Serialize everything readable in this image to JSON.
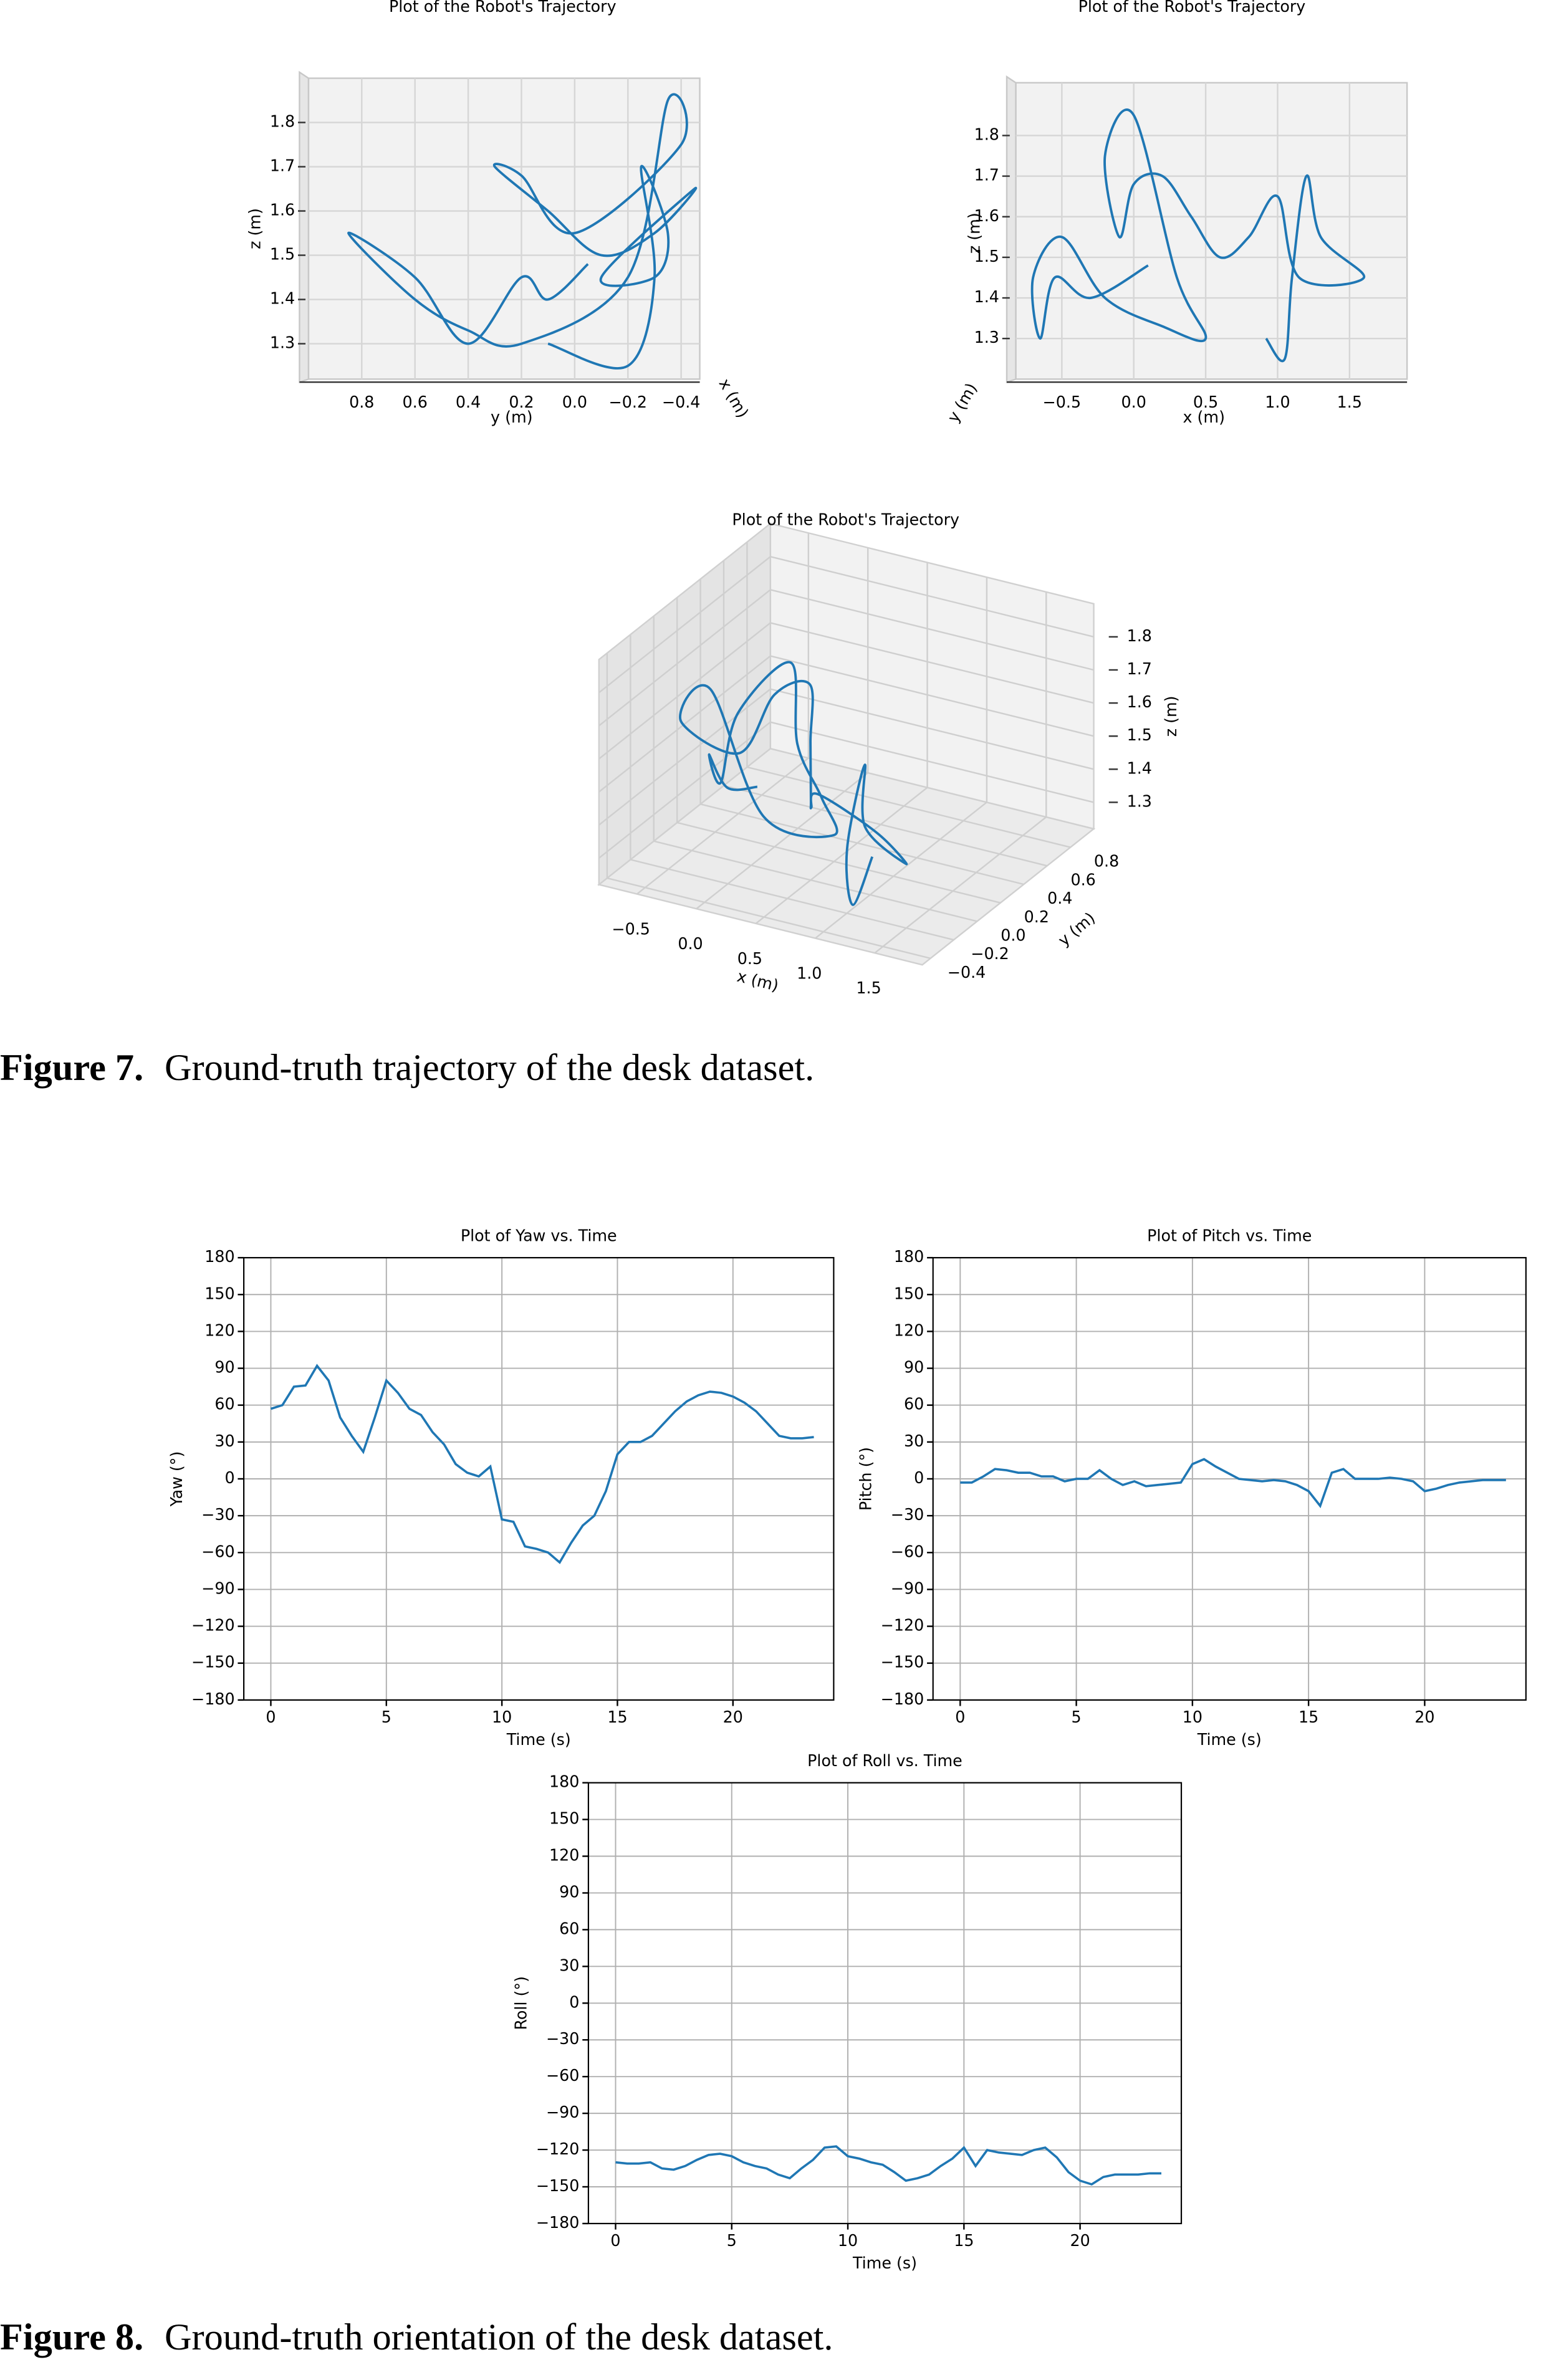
{
  "chart_data": [
    {
      "type": "line3d",
      "view": "yz",
      "title": "Plot of the Robot's Trajectory",
      "xlabel": "x (m)",
      "ylabel": "y (m)",
      "zlabel": "z (m)",
      "ylim": [
        1.0,
        -0.47
      ],
      "zlim": [
        1.22,
        1.9
      ],
      "yticks": [
        0.8,
        0.6,
        0.4,
        0.2,
        {
          "value": 0,
          "label": "0.0"
        },
        {
          "value": -0.2,
          "label": "−0.2"
        },
        {
          "value": -0.4,
          "label": "−0.4"
        }
      ],
      "zticks": [
        1.3,
        1.4,
        1.5,
        1.6,
        1.7,
        1.8
      ],
      "color": "#1f77b4",
      "y": [
        0.1,
        -0.2,
        -0.3,
        -0.25,
        -0.35,
        -0.3,
        -0.1,
        -0.45,
        -0.3,
        -0.1,
        0.1,
        0.3,
        0.2,
        0.0,
        -0.4,
        -0.35,
        -0.2,
        0.2,
        0.4,
        0.6,
        0.85,
        0.6,
        0.4,
        0.2,
        0.1,
        -0.05
      ],
      "z": [
        1.3,
        1.25,
        1.45,
        1.7,
        1.55,
        1.45,
        1.45,
        1.65,
        1.55,
        1.5,
        1.6,
        1.7,
        1.68,
        1.55,
        1.75,
        1.85,
        1.45,
        1.3,
        1.33,
        1.4,
        1.55,
        1.45,
        1.3,
        1.45,
        1.4,
        1.48
      ]
    },
    {
      "type": "line3d",
      "view": "xz",
      "title": "Plot of the Robot's Trajectory",
      "xlabel": "x (m)",
      "ylabel": "y (m)",
      "zlabel": "z (m)",
      "xlim": [
        -0.82,
        1.9
      ],
      "zlim": [
        1.2,
        1.93
      ],
      "xticks": [
        {
          "value": -0.5,
          "label": "−0.5"
        },
        {
          "value": 0,
          "label": "0.0"
        },
        0.5,
        {
          "value": 1,
          "label": "1.0"
        },
        1.5
      ],
      "zticks": [
        1.3,
        1.4,
        1.5,
        1.6,
        1.7,
        1.8
      ],
      "color": "#1f77b4",
      "x": [
        0.92,
        1.05,
        1.1,
        1.2,
        1.3,
        1.6,
        1.15,
        1.0,
        0.8,
        0.6,
        0.4,
        0.2,
        0.0,
        -0.1,
        -0.2,
        0.0,
        0.3,
        0.5,
        0.2,
        -0.2,
        -0.5,
        -0.7,
        -0.65,
        -0.55,
        -0.3,
        0.1
      ],
      "z": [
        1.3,
        1.25,
        1.45,
        1.7,
        1.55,
        1.45,
        1.45,
        1.65,
        1.55,
        1.5,
        1.6,
        1.7,
        1.68,
        1.55,
        1.75,
        1.85,
        1.45,
        1.3,
        1.33,
        1.4,
        1.55,
        1.45,
        1.3,
        1.45,
        1.4,
        1.48
      ]
    },
    {
      "type": "line3d",
      "view": "3d",
      "title": "Plot of the Robot's Trajectory",
      "xlabel": "x (m)",
      "ylabel": "y (m)",
      "zlabel": "z (m)",
      "xlim": [
        -0.82,
        1.9
      ],
      "ylim": [
        -0.47,
        1.0
      ],
      "zlim": [
        1.22,
        1.9
      ],
      "xticks": [
        {
          "value": -0.5,
          "label": "−0.5"
        },
        {
          "value": 0,
          "label": "0.0"
        },
        0.5,
        {
          "value": 1,
          "label": "1.0"
        },
        1.5
      ],
      "yticks": [
        {
          "value": -0.4,
          "label": "−0.4"
        },
        {
          "value": -0.2,
          "label": "−0.2"
        },
        {
          "value": 0,
          "label": "0.0"
        },
        0.2,
        0.4,
        0.6,
        0.8
      ],
      "zticks": [
        1.3,
        1.4,
        1.5,
        1.6,
        1.7,
        1.8
      ],
      "color": "#1f77b4",
      "x": [
        0.92,
        1.05,
        1.1,
        1.2,
        1.3,
        1.6,
        1.15,
        1.0,
        0.8,
        0.6,
        0.4,
        0.2,
        0.0,
        -0.1,
        -0.2,
        0.0,
        0.3,
        0.5,
        0.2,
        -0.2,
        -0.5,
        -0.7,
        -0.65,
        -0.55,
        -0.3,
        0.1
      ],
      "y": [
        0.1,
        -0.2,
        -0.3,
        -0.25,
        -0.35,
        -0.3,
        -0.1,
        -0.45,
        -0.3,
        -0.1,
        0.1,
        0.3,
        0.2,
        0.0,
        -0.4,
        -0.35,
        -0.2,
        0.2,
        0.4,
        0.6,
        0.85,
        0.6,
        0.4,
        0.2,
        0.1,
        -0.05
      ],
      "z": [
        1.3,
        1.25,
        1.45,
        1.7,
        1.55,
        1.45,
        1.45,
        1.65,
        1.55,
        1.5,
        1.6,
        1.7,
        1.68,
        1.55,
        1.75,
        1.85,
        1.45,
        1.3,
        1.33,
        1.4,
        1.55,
        1.45,
        1.3,
        1.45,
        1.4,
        1.48
      ]
    },
    {
      "type": "line",
      "title": "Plot of Yaw vs. Time",
      "xlabel": "Time (s)",
      "ylabel": "Yaw (°)",
      "color": "#1f77b4",
      "grid": true,
      "xlim": [
        -1.17,
        24.36
      ],
      "ylim": [
        -180,
        180
      ],
      "xticks": [
        0,
        5,
        10,
        15,
        20
      ],
      "yticks": [
        {
          "value": -180,
          "label": "−180"
        },
        {
          "value": -150,
          "label": "−150"
        },
        {
          "value": -120,
          "label": "−120"
        },
        {
          "value": -90,
          "label": "−90"
        },
        {
          "value": -60,
          "label": "−60"
        },
        {
          "value": -30,
          "label": "−30"
        },
        0,
        30,
        60,
        90,
        120,
        150,
        180
      ],
      "x": [
        0,
        0.5,
        1,
        1.5,
        2,
        2.5,
        3,
        3.5,
        4,
        4.5,
        5,
        5.5,
        6,
        6.5,
        7,
        7.5,
        8,
        8.5,
        9,
        9.5,
        10,
        10.5,
        11,
        11.5,
        12,
        12.5,
        13,
        13.5,
        14,
        14.5,
        15,
        15.5,
        16,
        16.5,
        17,
        17.5,
        18,
        18.5,
        19,
        19.5,
        20,
        20.5,
        21,
        21.5,
        22,
        22.5,
        23,
        23.5
      ],
      "values": [
        57,
        60,
        75,
        76,
        92,
        80,
        50,
        35,
        22,
        50,
        80,
        70,
        57,
        52,
        38,
        28,
        12,
        5,
        2,
        10,
        -33,
        -35,
        -55,
        -57,
        -60,
        -68,
        -52,
        -38,
        -30,
        -10,
        20,
        30,
        30,
        35,
        45,
        55,
        63,
        68,
        71,
        70,
        67,
        62,
        55,
        45,
        35,
        33,
        33,
        34
      ]
    },
    {
      "type": "line",
      "title": "Plot of Pitch vs. Time",
      "xlabel": "Time (s)",
      "ylabel": "Pitch (°)",
      "color": "#1f77b4",
      "grid": true,
      "xlim": [
        -1.17,
        24.36
      ],
      "ylim": [
        -180,
        180
      ],
      "xticks": [
        0,
        5,
        10,
        15,
        20
      ],
      "yticks": [
        {
          "value": -180,
          "label": "−180"
        },
        {
          "value": -150,
          "label": "−150"
        },
        {
          "value": -120,
          "label": "−120"
        },
        {
          "value": -90,
          "label": "−90"
        },
        {
          "value": -60,
          "label": "−60"
        },
        {
          "value": -30,
          "label": "−30"
        },
        0,
        30,
        60,
        90,
        120,
        150,
        180
      ],
      "x": [
        0,
        0.5,
        1,
        1.5,
        2,
        2.5,
        3,
        3.5,
        4,
        4.5,
        5,
        5.5,
        6,
        6.5,
        7,
        7.5,
        8,
        8.5,
        9,
        9.5,
        10,
        10.5,
        11,
        11.5,
        12,
        12.5,
        13,
        13.5,
        14,
        14.5,
        15,
        15.5,
        16,
        16.5,
        17,
        17.5,
        18,
        18.5,
        19,
        19.5,
        20,
        20.5,
        21,
        21.5,
        22,
        22.5,
        23,
        23.5
      ],
      "values": [
        -3,
        -3,
        2,
        8,
        7,
        5,
        5,
        2,
        2,
        -2,
        0,
        0,
        7,
        0,
        -5,
        -2,
        -6,
        -5,
        -4,
        -3,
        12,
        16,
        10,
        5,
        0,
        -1,
        -2,
        -1,
        -2,
        -5,
        -10,
        -22,
        5,
        8,
        0,
        0,
        0,
        1,
        0,
        -2,
        -10,
        -8,
        -5,
        -3,
        -2,
        -1,
        -1,
        -1
      ]
    },
    {
      "type": "line",
      "title": "Plot of Roll vs. Time",
      "xlabel": "Time (s)",
      "ylabel": "Roll (°)",
      "color": "#1f77b4",
      "grid": true,
      "xlim": [
        -1.17,
        24.36
      ],
      "ylim": [
        -180,
        180
      ],
      "xticks": [
        0,
        5,
        10,
        15,
        20
      ],
      "yticks": [
        {
          "value": -180,
          "label": "−180"
        },
        {
          "value": -150,
          "label": "−150"
        },
        {
          "value": -120,
          "label": "−120"
        },
        {
          "value": -90,
          "label": "−90"
        },
        {
          "value": -60,
          "label": "−60"
        },
        {
          "value": -30,
          "label": "−30"
        },
        0,
        30,
        60,
        90,
        120,
        150,
        180
      ],
      "x": [
        0,
        0.5,
        1,
        1.5,
        2,
        2.5,
        3,
        3.5,
        4,
        4.5,
        5,
        5.5,
        6,
        6.5,
        7,
        7.5,
        8,
        8.5,
        9,
        9.5,
        10,
        10.5,
        11,
        11.5,
        12,
        12.5,
        13,
        13.5,
        14,
        14.5,
        15,
        15.5,
        16,
        16.5,
        17,
        17.5,
        18,
        18.5,
        19,
        19.5,
        20,
        20.5,
        21,
        21.5,
        22,
        22.5,
        23,
        23.5
      ],
      "values": [
        -130,
        -131,
        -131,
        -130,
        -135,
        -136,
        -133,
        -128,
        -124,
        -123,
        -125,
        -130,
        -133,
        -135,
        -140,
        -143,
        -135,
        -128,
        -118,
        -117,
        -125,
        -127,
        -130,
        -132,
        -138,
        -145,
        -143,
        -140,
        -133,
        -127,
        -118,
        -133,
        -120,
        -122,
        -123,
        -124,
        -120,
        -118,
        -126,
        -138,
        -145,
        -148,
        -142,
        -140,
        -140,
        -140,
        -139,
        -139
      ]
    }
  ],
  "captions": [
    {
      "label": "Figure 7.",
      "text": "Ground-truth trajectory of the desk dataset."
    },
    {
      "label": "Figure 8.",
      "text": "Ground-truth orientation of the desk dataset."
    }
  ]
}
